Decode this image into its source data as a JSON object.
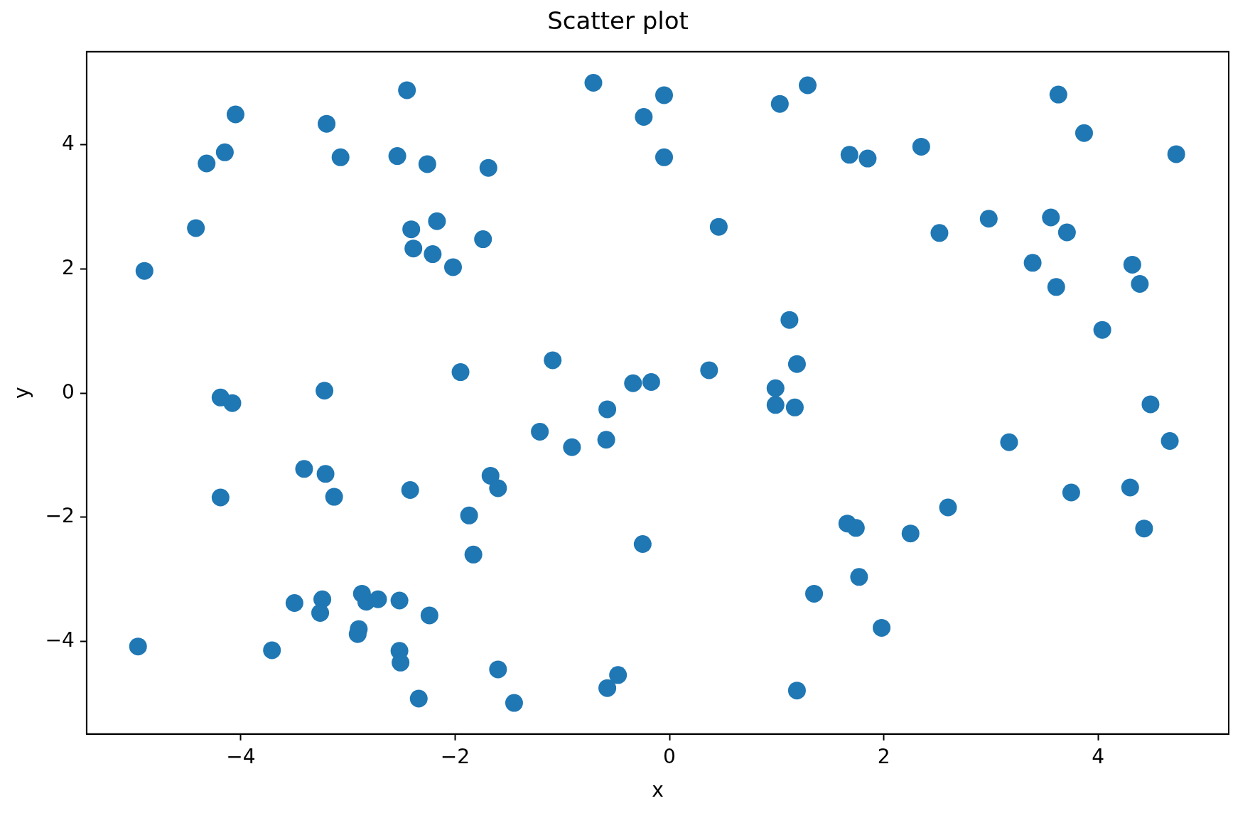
{
  "chart_data": {
    "type": "scatter",
    "title": "Scatter plot",
    "xlabel": "x",
    "ylabel": "y",
    "color": "#1f77b4",
    "marker": "circle",
    "grid": false,
    "legend": false,
    "xlim": [
      -5.44,
      5.22
    ],
    "ylim": [
      -5.49,
      5.5
    ],
    "xticks": [
      {
        "value": -4,
        "label": "−4"
      },
      {
        "value": -2,
        "label": "−2"
      },
      0,
      2,
      4
    ],
    "yticks": [
      {
        "value": -4,
        "label": "−4"
      },
      {
        "value": -2,
        "label": "−2"
      },
      0,
      2,
      4
    ],
    "x": [
      -2.45,
      -0.71,
      -0.05,
      -0.24,
      1.03,
      1.29,
      -4.05,
      -3.2,
      -4.15,
      -4.32,
      -3.07,
      -2.54,
      -2.26,
      -1.69,
      -0.05,
      1.68,
      1.85,
      2.35,
      3.63,
      3.87,
      4.73,
      -4.42,
      -4.9,
      -2.41,
      -2.17,
      -2.39,
      -2.21,
      -2.02,
      -1.74,
      0.46,
      2.52,
      2.98,
      3.56,
      3.71,
      3.39,
      3.61,
      4.32,
      4.39,
      4.04,
      1.12,
      1.19,
      0.99,
      0.99,
      1.17,
      0.37,
      -0.34,
      -0.17,
      -1.09,
      -1.95,
      -3.22,
      -4.19,
      -4.08,
      -0.58,
      -0.59,
      -1.21,
      -0.91,
      4.49,
      4.67,
      3.17,
      -3.41,
      -3.21,
      -3.13,
      -4.19,
      -2.42,
      -1.67,
      -1.6,
      -1.87,
      -1.83,
      -0.25,
      1.66,
      1.74,
      2.25,
      2.6,
      3.75,
      4.3,
      4.43,
      1.77,
      1.35,
      1.98,
      1.19,
      -0.48,
      -0.58,
      -1.45,
      -1.6,
      -2.34,
      -2.52,
      -2.51,
      -2.24,
      -2.52,
      -2.87,
      -2.83,
      -2.72,
      -2.9,
      -2.91,
      -3.24,
      -3.26,
      -3.5,
      -3.71,
      -4.96
    ],
    "values": [
      4.88,
      5.0,
      4.8,
      4.45,
      4.66,
      4.96,
      4.49,
      4.34,
      3.88,
      3.7,
      3.8,
      3.82,
      3.69,
      3.63,
      3.8,
      3.84,
      3.78,
      3.97,
      4.81,
      4.19,
      3.85,
      2.66,
      1.97,
      2.64,
      2.77,
      2.33,
      2.24,
      2.03,
      2.48,
      2.68,
      2.58,
      2.81,
      2.83,
      2.59,
      2.1,
      1.71,
      2.07,
      1.76,
      1.02,
      1.18,
      0.47,
      0.08,
      -0.19,
      -0.23,
      0.37,
      0.16,
      0.18,
      0.53,
      0.34,
      0.04,
      -0.07,
      -0.16,
      -0.26,
      -0.75,
      -0.62,
      -0.87,
      -0.18,
      -0.77,
      -0.79,
      -1.22,
      -1.3,
      -1.67,
      -1.68,
      -1.56,
      -1.33,
      -1.53,
      -1.97,
      -2.6,
      -2.43,
      -2.1,
      -2.17,
      -2.26,
      -1.84,
      -1.6,
      -1.52,
      -2.18,
      -2.96,
      -3.23,
      -3.78,
      -4.79,
      -4.54,
      -4.75,
      -4.99,
      -4.45,
      -4.92,
      -4.15,
      -4.34,
      -3.58,
      -3.34,
      -3.23,
      -3.36,
      -3.32,
      -3.8,
      -3.88,
      -3.32,
      -3.54,
      -3.38,
      -4.14,
      -4.08
    ]
  }
}
